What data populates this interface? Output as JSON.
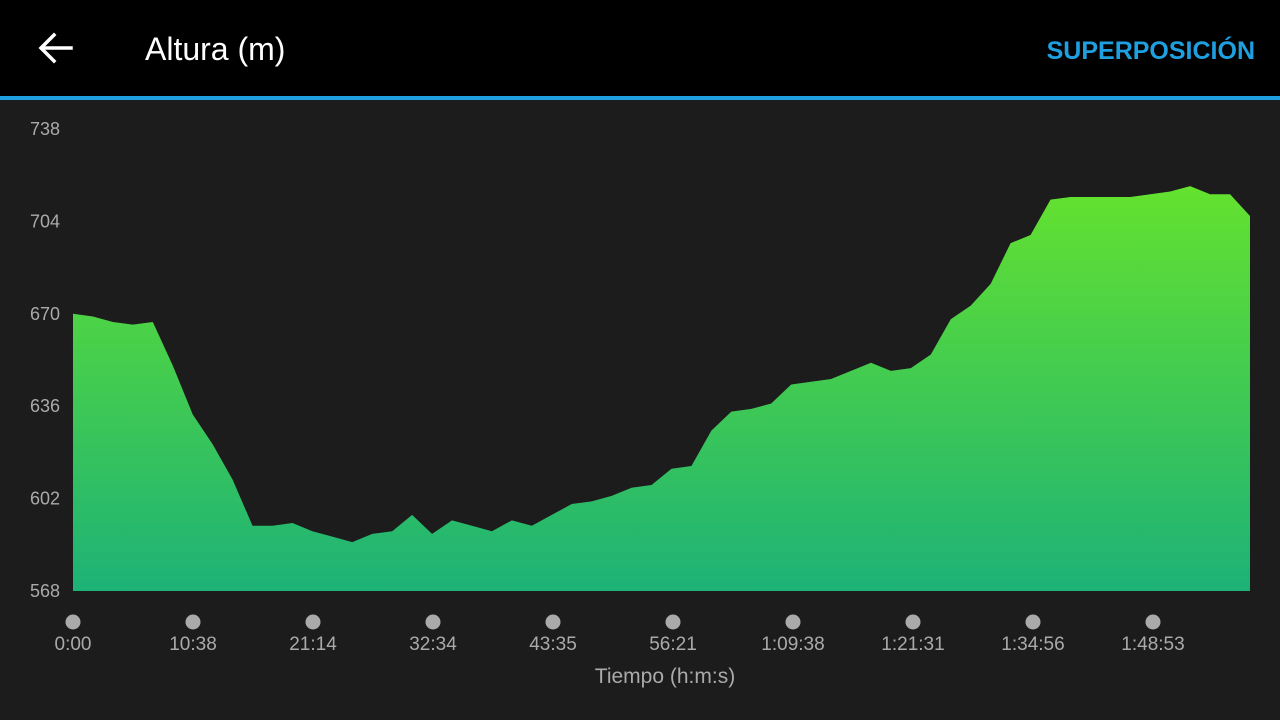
{
  "header": {
    "title": "Altura (m)",
    "action": "SUPERPOSICIÓN"
  },
  "chart_data": {
    "type": "area",
    "x_label": "Tiempo (h:m:s)",
    "x_tick_labels": [
      "0:00",
      "10:38",
      "21:14",
      "32:34",
      "43:35",
      "56:21",
      "1:09:38",
      "1:21:31",
      "1:34:56",
      "1:48:53"
    ],
    "values": [
      670,
      669,
      667,
      666,
      667,
      651,
      633,
      622,
      609,
      592,
      592,
      593,
      590,
      588,
      586,
      589,
      590,
      596,
      589,
      594,
      592,
      590,
      594,
      592,
      596,
      600,
      601,
      603,
      606,
      607,
      613,
      614,
      627,
      634,
      635,
      637,
      644,
      645,
      646,
      649,
      652,
      649,
      650,
      655,
      668,
      673,
      681,
      696,
      699,
      712,
      713,
      713,
      713,
      713,
      714,
      715,
      717,
      714,
      714,
      706
    ],
    "ylim": [
      568,
      738
    ],
    "yticks": [
      568,
      602,
      636,
      670,
      704,
      738
    ],
    "color_top": "#64e22e",
    "color_bottom": "#1db277"
  }
}
